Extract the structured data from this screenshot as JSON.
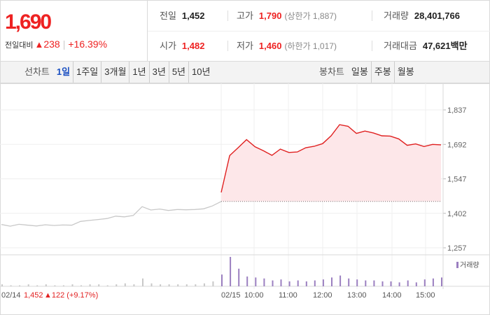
{
  "summary": {
    "price": "1,690",
    "change_label": "전일대비",
    "change_arrow": "▲",
    "change_value": "238",
    "change_rate": "+16.39%",
    "prev_close_label": "전일",
    "prev_close": "1,452",
    "high_label": "고가",
    "high": "1,790",
    "upper_limit": "(상한가 1,887)",
    "volume_label": "거래량",
    "volume": "28,401,766",
    "open_label": "시가",
    "open": "1,482",
    "low_label": "저가",
    "low": "1,460",
    "lower_limit": "(하한가 1,017)",
    "amount_label": "거래대금",
    "amount": "47,621",
    "amount_unit": "백만"
  },
  "tabs": {
    "line_label": "선차트",
    "line_periods": [
      {
        "label": "1일",
        "selected": true
      },
      {
        "label": "1주일",
        "selected": false
      },
      {
        "label": "3개월",
        "selected": false
      },
      {
        "label": "1년",
        "selected": false
      },
      {
        "label": "3년",
        "selected": false
      },
      {
        "label": "5년",
        "selected": false
      },
      {
        "label": "10년",
        "selected": false
      }
    ],
    "candle_label": "봉차트",
    "candle_periods": [
      {
        "label": "일봉"
      },
      {
        "label": "주봉"
      },
      {
        "label": "월봉"
      }
    ]
  },
  "colors": {
    "up": "#e22222",
    "down": "#1a4fc1",
    "prev_day_line": "#c8c8c8",
    "today_line": "#e02020",
    "today_fill": "#fde7e9",
    "volume_prev": "#c8c8c8",
    "volume_today": "#9b7fc0"
  },
  "chart_data": {
    "type": "line",
    "ylabel": "",
    "ylim": [
      1257,
      1837
    ],
    "y_ticks": [
      "1,837",
      "1,692",
      "1,547",
      "1,402",
      "1,257"
    ],
    "x_ticks": [
      "02/15",
      "10:00",
      "11:00",
      "12:00",
      "13:00",
      "14:00",
      "15:00"
    ],
    "prev_day_label": "02/14",
    "prev_day_close": "1,452",
    "prev_day_change": "▲122 (+9.17%)",
    "reference_price": 1452,
    "volume_legend": "거래량",
    "series": [
      {
        "x": [
          "09:00",
          "09:15",
          "09:30",
          "09:45",
          "10:00",
          "10:15",
          "10:30",
          "10:45",
          "11:00",
          "11:15",
          "11:30",
          "11:45",
          "12:00",
          "12:15",
          "12:30",
          "12:45",
          "13:00",
          "13:15",
          "13:30",
          "13:45",
          "14:00",
          "14:15",
          "14:30",
          "14:45",
          "15:00",
          "15:15",
          "15:20"
        ],
        "values": [
          1490,
          1645,
          1678,
          1712,
          1682,
          1665,
          1646,
          1672,
          1658,
          1660,
          1678,
          1684,
          1695,
          1728,
          1775,
          1768,
          1738,
          1748,
          1740,
          1728,
          1727,
          1715,
          1688,
          1694,
          1683,
          1692,
          1690
        ]
      }
    ],
    "prev_day_series": {
      "values": [
        1355,
        1348,
        1356,
        1352,
        1349,
        1354,
        1351,
        1353,
        1352,
        1368,
        1372,
        1376,
        1380,
        1390,
        1387,
        1393,
        1430,
        1416,
        1420,
        1414,
        1418,
        1417,
        1418,
        1421,
        1433,
        1452
      ]
    },
    "volume": {
      "prev_day": [
        2,
        1,
        1,
        2,
        1,
        2,
        1,
        1,
        2,
        1,
        2,
        2,
        1,
        2,
        3,
        2,
        8,
        3,
        2,
        2,
        2,
        2,
        2,
        3,
        5,
        4
      ],
      "today": [
        12,
        30,
        18,
        10,
        9,
        8,
        6,
        7,
        5,
        6,
        5,
        6,
        7,
        9,
        11,
        8,
        7,
        6,
        6,
        5,
        5,
        4,
        6,
        4,
        7,
        8,
        9
      ]
    }
  }
}
